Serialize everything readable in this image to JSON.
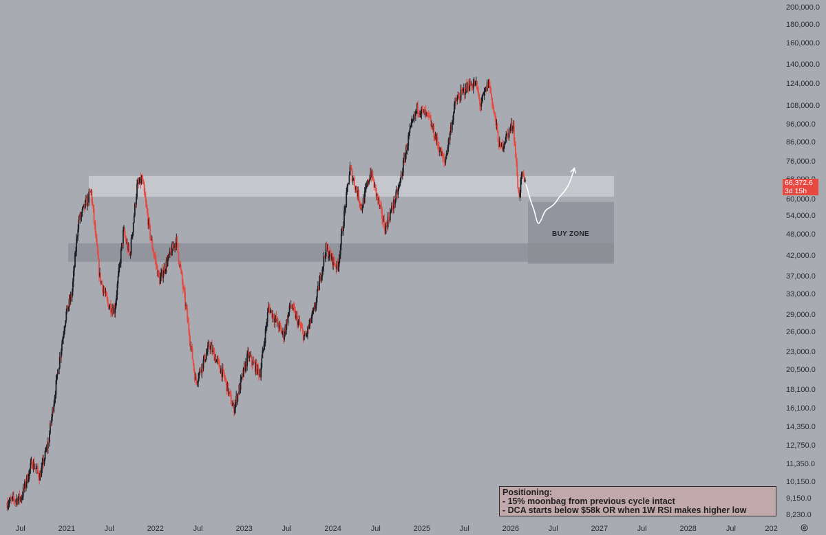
{
  "chart_data": {
    "type": "candlestick",
    "symbol_hint": "BTC",
    "y_scale": "log",
    "ylim": [
      8000,
      205000
    ],
    "x_range": [
      "2020-05-01",
      "2027-12-31"
    ],
    "y_ticks": [
      "200,000.0",
      "180,000.0",
      "160,000.0",
      "140,000.0",
      "124,000.0",
      "108,000.0",
      "96,000.0",
      "86,000.0",
      "76,000.0",
      "68,000.0",
      "60,000.0",
      "54,000.0",
      "48,000.0",
      "42,000.0",
      "37,000.0",
      "33,000.0",
      "29,000.0",
      "26,000.0",
      "23,000.0",
      "20,500.0",
      "18,100.0",
      "16,100.0",
      "14,350.0",
      "12,750.0",
      "11,350.0",
      "10,150.0",
      "9,150.0",
      "8,230.0"
    ],
    "x_ticks": [
      "Jul",
      "2021",
      "Jul",
      "2022",
      "Jul",
      "2023",
      "Jul",
      "2024",
      "Jul",
      "2025",
      "Jul",
      "2026",
      "Jul",
      "2027",
      "Jul",
      "2028",
      "Jul",
      "202"
    ],
    "candle_up_color": "#1c1e24",
    "candle_down_color": "#e8483f",
    "price_path": [
      [
        "2020-05-01",
        8900
      ],
      [
        "2020-07-01",
        9200
      ],
      [
        "2020-08-15",
        11500
      ],
      [
        "2020-09-15",
        10500
      ],
      [
        "2020-10-20",
        13000
      ],
      [
        "2020-11-20",
        18500
      ],
      [
        "2020-12-31",
        29000
      ],
      [
        "2021-01-25",
        33000
      ],
      [
        "2021-02-20",
        52000
      ],
      [
        "2021-04-14",
        63000
      ],
      [
        "2021-05-19",
        37000
      ],
      [
        "2021-06-22",
        31000
      ],
      [
        "2021-07-20",
        30000
      ],
      [
        "2021-08-25",
        49000
      ],
      [
        "2021-09-20",
        42000
      ],
      [
        "2021-10-20",
        65000
      ],
      [
        "2021-11-10",
        68000
      ],
      [
        "2021-12-15",
        47000
      ],
      [
        "2022-01-20",
        36000
      ],
      [
        "2022-03-30",
        46500
      ],
      [
        "2022-05-10",
        30000
      ],
      [
        "2022-06-18",
        19000
      ],
      [
        "2022-08-15",
        24000
      ],
      [
        "2022-10-15",
        19500
      ],
      [
        "2022-11-21",
        16000
      ],
      [
        "2023-01-20",
        22500
      ],
      [
        "2023-03-10",
        20000
      ],
      [
        "2023-04-14",
        30500
      ],
      [
        "2023-06-15",
        25500
      ],
      [
        "2023-07-14",
        31000
      ],
      [
        "2023-09-11",
        25000
      ],
      [
        "2023-10-20",
        30000
      ],
      [
        "2023-12-05",
        44000
      ],
      [
        "2024-01-23",
        39000
      ],
      [
        "2024-03-14",
        73000
      ],
      [
        "2024-05-01",
        57000
      ],
      [
        "2024-06-07",
        71500
      ],
      [
        "2024-08-05",
        50000
      ],
      [
        "2024-09-30",
        64000
      ],
      [
        "2024-11-12",
        90000
      ],
      [
        "2024-12-17",
        107000
      ],
      [
        "2025-02-01",
        100000
      ],
      [
        "2025-04-07",
        75000
      ],
      [
        "2025-05-22",
        111000
      ],
      [
        "2025-07-14",
        123000
      ],
      [
        "2025-08-14",
        124000
      ],
      [
        "2025-09-01",
        108000
      ],
      [
        "2025-10-06",
        126000
      ],
      [
        "2025-11-21",
        82000
      ],
      [
        "2026-01-14",
        97000
      ],
      [
        "2026-02-06",
        61000
      ],
      [
        "2026-02-20",
        70000
      ],
      [
        "2026-03-02",
        66372.6
      ]
    ],
    "projection_path": [
      [
        "2026-03-05",
        66000
      ],
      [
        "2026-03-25",
        59000
      ],
      [
        "2026-04-08",
        56000
      ],
      [
        "2026-04-22",
        51000
      ],
      [
        "2026-05-06",
        52500
      ],
      [
        "2026-05-22",
        56000
      ],
      [
        "2026-06-12",
        57000
      ],
      [
        "2026-07-03",
        58500
      ],
      [
        "2026-07-20",
        61000
      ],
      [
        "2026-08-10",
        63000
      ],
      [
        "2026-09-01",
        66500
      ],
      [
        "2026-09-20",
        73000
      ]
    ],
    "zones": [
      {
        "name": "resistance-band",
        "from": "2021-01-15",
        "to": "2027-01-01",
        "low": 61000,
        "high": 69500,
        "color": "#cacbd0"
      },
      {
        "name": "support-band",
        "from": "2020-12-15",
        "to": "2027-01-01",
        "low": 40500,
        "high": 45500,
        "color": "#8b8e96"
      },
      {
        "name": "buy-zone",
        "from": "2026-03-01",
        "to": "2027-01-01",
        "low": 40000,
        "high": 59000,
        "color": "#8b8e96"
      }
    ],
    "last_price": {
      "value": "66,372.6",
      "countdown": "3d 15h",
      "color": "#e8483f"
    },
    "annotations": {
      "buy_zone": "BUY ZONE"
    },
    "note_lines": [
      "Positioning:",
      "- 15% moonbag from previous cycle intact",
      "- DCA starts below $58k OR when 1W RSI makes higher low"
    ],
    "grid": false
  },
  "icons": {
    "settings": "gear-icon"
  }
}
